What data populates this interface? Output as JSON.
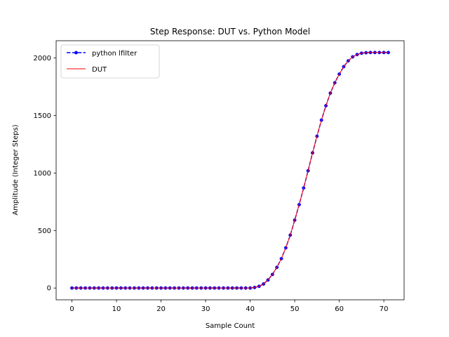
{
  "chart_data": {
    "type": "line",
    "title": "Step Response: DUT vs. Python Model",
    "xlabel": "Sample Count",
    "ylabel": "Amplitude (Integer Steps)",
    "xlim": [
      -3.55,
      74.55
    ],
    "ylim": [
      -102.4,
      2150.4
    ],
    "xticks": [
      0,
      10,
      20,
      30,
      40,
      50,
      60,
      70
    ],
    "yticks": [
      0,
      500,
      1000,
      1500,
      2000
    ],
    "grid": false,
    "legend_position": "upper left",
    "x": [
      0,
      1,
      2,
      3,
      4,
      5,
      6,
      7,
      8,
      9,
      10,
      11,
      12,
      13,
      14,
      15,
      16,
      17,
      18,
      19,
      20,
      21,
      22,
      23,
      24,
      25,
      26,
      27,
      28,
      29,
      30,
      31,
      32,
      33,
      34,
      35,
      36,
      37,
      38,
      39,
      40,
      41,
      42,
      43,
      44,
      45,
      46,
      47,
      48,
      49,
      50,
      51,
      52,
      53,
      54,
      55,
      56,
      57,
      58,
      59,
      60,
      61,
      62,
      63,
      64,
      65,
      66,
      67,
      68,
      69,
      70,
      71
    ],
    "series": [
      {
        "name": "python lfilter",
        "color": "#0000ff",
        "style": "dashed-markers",
        "values": [
          0,
          0,
          0,
          0,
          0,
          0,
          0,
          0,
          0,
          0,
          0,
          0,
          0,
          0,
          0,
          0,
          0,
          0,
          0,
          0,
          0,
          0,
          0,
          0,
          0,
          0,
          0,
          0,
          0,
          0,
          0,
          0,
          0,
          0,
          0,
          0,
          0,
          0,
          0,
          0,
          0,
          5,
          15,
          35,
          70,
          118,
          180,
          255,
          350,
          460,
          590,
          725,
          870,
          1020,
          1175,
          1320,
          1460,
          1585,
          1695,
          1785,
          1860,
          1925,
          1975,
          2010,
          2030,
          2042,
          2046,
          2048,
          2048,
          2048,
          2048,
          2048
        ]
      },
      {
        "name": "DUT",
        "color": "#ff0000",
        "style": "solid",
        "values": [
          0,
          0,
          0,
          0,
          0,
          0,
          0,
          0,
          0,
          0,
          0,
          0,
          0,
          0,
          0,
          0,
          0,
          0,
          0,
          0,
          0,
          0,
          0,
          0,
          0,
          0,
          0,
          0,
          0,
          0,
          0,
          0,
          0,
          0,
          0,
          0,
          0,
          0,
          0,
          0,
          0,
          5,
          15,
          35,
          70,
          118,
          180,
          255,
          350,
          460,
          590,
          725,
          870,
          1020,
          1175,
          1320,
          1460,
          1585,
          1695,
          1785,
          1860,
          1925,
          1975,
          2010,
          2030,
          2042,
          2046,
          2048,
          2048,
          2048,
          2048,
          2048
        ]
      }
    ]
  }
}
